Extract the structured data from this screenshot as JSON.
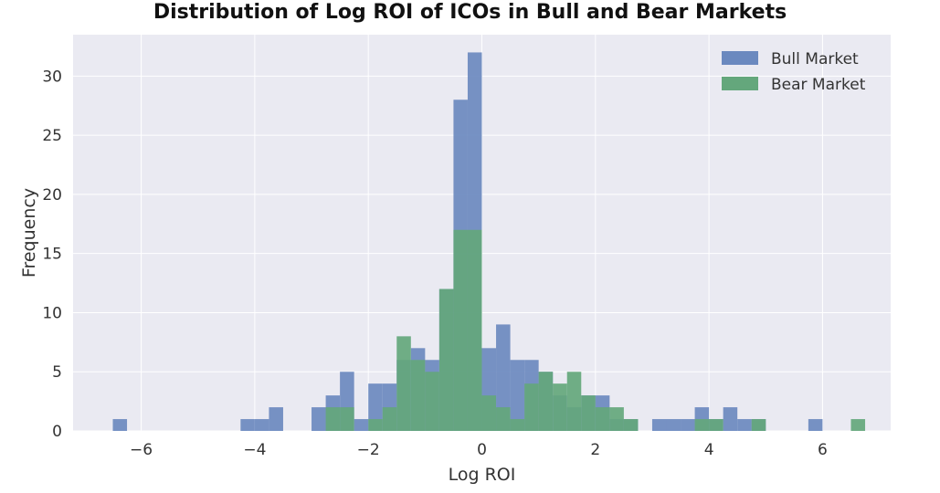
{
  "chart_data": {
    "type": "histogram",
    "title": "Distribution of Log ROI of ICOs in Bull and Bear Markets",
    "xlabel": "Log ROI",
    "ylabel": "Frequency",
    "xlim": [
      -7.2,
      7.2
    ],
    "ylim": [
      0,
      33.5
    ],
    "xticks": [
      -6,
      -4,
      -2,
      0,
      2,
      4,
      6
    ],
    "xtick_labels": [
      "−6",
      "−4",
      "−2",
      "0",
      "2",
      "4",
      "6"
    ],
    "yticks": [
      0,
      5,
      10,
      15,
      20,
      25,
      30
    ],
    "ytick_labels": [
      "0",
      "5",
      "10",
      "15",
      "20",
      "25",
      "30"
    ],
    "grid": true,
    "legend_position": "top-right",
    "series": [
      {
        "name": "Bull Market",
        "color": "#6b89bf",
        "bin_width": 0.25,
        "bins": [
          {
            "x0": -6.5,
            "count": 1
          },
          {
            "x0": -4.25,
            "count": 1
          },
          {
            "x0": -4.0,
            "count": 1
          },
          {
            "x0": -3.75,
            "count": 2
          },
          {
            "x0": -3.0,
            "count": 2
          },
          {
            "x0": -2.75,
            "count": 3
          },
          {
            "x0": -2.5,
            "count": 5
          },
          {
            "x0": -2.25,
            "count": 1
          },
          {
            "x0": -2.0,
            "count": 4
          },
          {
            "x0": -1.75,
            "count": 4
          },
          {
            "x0": -1.5,
            "count": 6
          },
          {
            "x0": -1.25,
            "count": 7
          },
          {
            "x0": -1.0,
            "count": 6
          },
          {
            "x0": -0.75,
            "count": 12
          },
          {
            "x0": -0.5,
            "count": 28
          },
          {
            "x0": -0.25,
            "count": 32
          },
          {
            "x0": 0.0,
            "count": 7
          },
          {
            "x0": 0.25,
            "count": 9
          },
          {
            "x0": 0.5,
            "count": 6
          },
          {
            "x0": 0.75,
            "count": 6
          },
          {
            "x0": 1.0,
            "count": 5
          },
          {
            "x0": 1.25,
            "count": 3
          },
          {
            "x0": 1.5,
            "count": 2
          },
          {
            "x0": 1.75,
            "count": 3
          },
          {
            "x0": 2.0,
            "count": 3
          },
          {
            "x0": 2.25,
            "count": 1
          },
          {
            "x0": 2.5,
            "count": 1
          },
          {
            "x0": 3.0,
            "count": 1
          },
          {
            "x0": 3.25,
            "count": 1
          },
          {
            "x0": 3.5,
            "count": 1
          },
          {
            "x0": 3.75,
            "count": 2
          },
          {
            "x0": 4.0,
            "count": 1
          },
          {
            "x0": 4.25,
            "count": 2
          },
          {
            "x0": 4.5,
            "count": 1
          },
          {
            "x0": 4.75,
            "count": 1
          },
          {
            "x0": 5.75,
            "count": 1
          }
        ]
      },
      {
        "name": "Bear Market",
        "color": "#64a77c",
        "bin_width": 0.25,
        "bins": [
          {
            "x0": -2.75,
            "count": 2
          },
          {
            "x0": -2.5,
            "count": 2
          },
          {
            "x0": -2.0,
            "count": 1
          },
          {
            "x0": -1.75,
            "count": 2
          },
          {
            "x0": -1.5,
            "count": 8
          },
          {
            "x0": -1.25,
            "count": 6
          },
          {
            "x0": -1.0,
            "count": 5
          },
          {
            "x0": -0.75,
            "count": 12
          },
          {
            "x0": -0.5,
            "count": 17
          },
          {
            "x0": -0.25,
            "count": 17
          },
          {
            "x0": 0.0,
            "count": 3
          },
          {
            "x0": 0.25,
            "count": 2
          },
          {
            "x0": 0.5,
            "count": 1
          },
          {
            "x0": 0.75,
            "count": 4
          },
          {
            "x0": 1.0,
            "count": 5
          },
          {
            "x0": 1.25,
            "count": 4
          },
          {
            "x0": 1.5,
            "count": 5
          },
          {
            "x0": 1.75,
            "count": 3
          },
          {
            "x0": 2.0,
            "count": 2
          },
          {
            "x0": 2.25,
            "count": 2
          },
          {
            "x0": 2.5,
            "count": 1
          },
          {
            "x0": 3.75,
            "count": 1
          },
          {
            "x0": 4.0,
            "count": 1
          },
          {
            "x0": 4.75,
            "count": 1
          },
          {
            "x0": 6.5,
            "count": 1
          }
        ]
      }
    ]
  },
  "style": {
    "plot_background": "#eaeaf2",
    "grid_color": "#ffffff"
  }
}
